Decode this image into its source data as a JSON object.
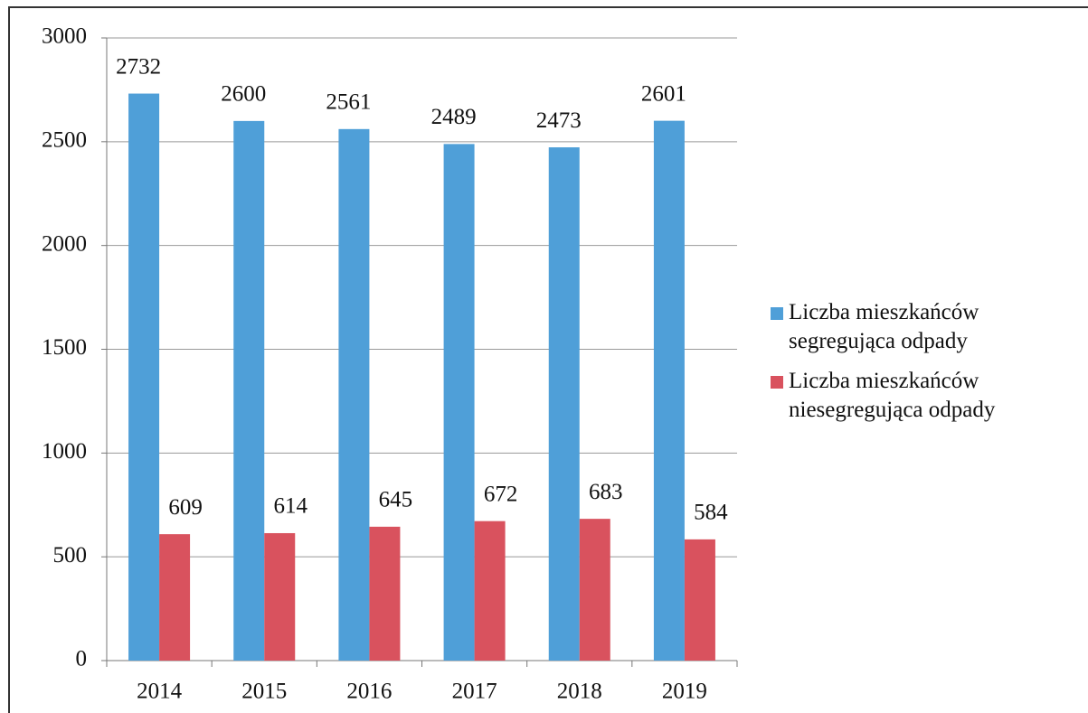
{
  "chart_data": {
    "type": "bar",
    "categories": [
      "2014",
      "2015",
      "2016",
      "2017",
      "2018",
      "2019"
    ],
    "series": [
      {
        "name": "Liczba mieszkańców segregująca odpady",
        "color": "#4f9fd8",
        "values": [
          2732,
          2600,
          2561,
          2489,
          2473,
          2601
        ]
      },
      {
        "name": "Liczba mieszkańców niesegregująca odpady",
        "color": "#d9525e",
        "values": [
          609,
          614,
          645,
          672,
          683,
          584
        ]
      }
    ],
    "ylim": [
      0,
      3000
    ],
    "yticks": [
      0,
      500,
      1000,
      1500,
      2000,
      2500,
      3000
    ],
    "grid": true,
    "legend": "right"
  }
}
